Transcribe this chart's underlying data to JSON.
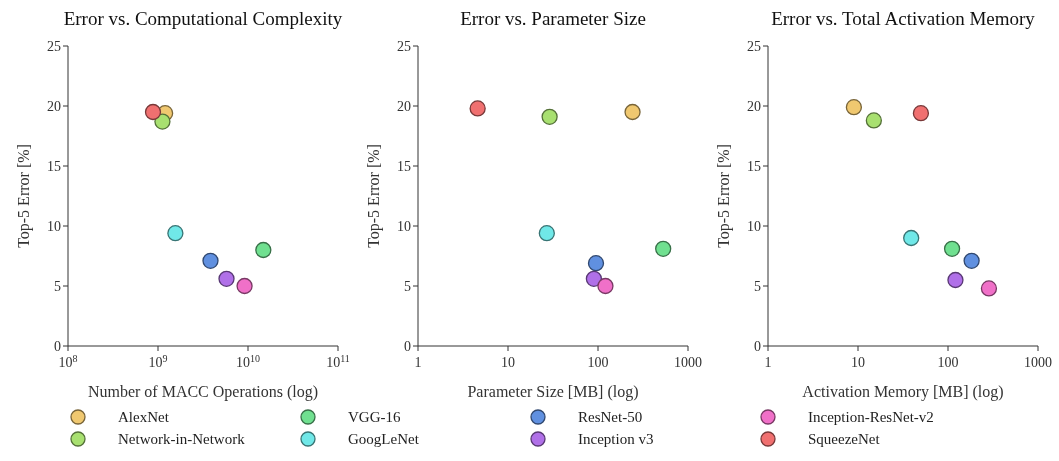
{
  "chart_data": [
    {
      "type": "scatter",
      "title": "Error vs. Computational Complexity",
      "xlabel": "Number of MACC Operations (log)",
      "ylabel": "Top-5 Error [%]",
      "log": "x",
      "xlim": [
        100000000,
        100000000000
      ],
      "xticks": [
        {
          "value": 100000000,
          "label": "10$^{8}$"
        },
        {
          "value": 1000000000,
          "label": "10$^{9}$"
        },
        {
          "value": 10000000000,
          "label": "10$^{10}$"
        },
        {
          "value": 100000000000,
          "label": "10$^{11}$"
        }
      ],
      "ylim": [
        0,
        25
      ],
      "yticks": [
        0,
        5,
        10,
        15,
        20,
        25
      ],
      "marker": "circle",
      "grid": false,
      "legend": "bottom",
      "series": [
        {
          "name": "AlexNet",
          "color": "#f0c870",
          "x": [
            1200000000
          ],
          "values": [
            19.4
          ]
        },
        {
          "name": "Network-in-Network",
          "color": "#a8e070",
          "x": [
            1120000000
          ],
          "values": [
            18.7
          ]
        },
        {
          "name": "VGG-16",
          "color": "#70e090",
          "x": [
            14800000000
          ],
          "values": [
            8.0
          ]
        },
        {
          "name": "GoogLeNet",
          "color": "#70e8e8",
          "x": [
            1560000000
          ],
          "values": [
            9.4
          ]
        },
        {
          "name": "ResNet-50",
          "color": "#6090e0",
          "x": [
            3830000000
          ],
          "values": [
            7.1
          ]
        },
        {
          "name": "Inception v3",
          "color": "#b070e8",
          "x": [
            5770000000
          ],
          "values": [
            5.6
          ]
        },
        {
          "name": "Inception-ResNet-v2",
          "color": "#f070c8",
          "x": [
            9160000000
          ],
          "values": [
            5.0
          ]
        },
        {
          "name": "SqueezeNet",
          "color": "#f07070",
          "x": [
            880000000
          ],
          "values": [
            19.5
          ]
        }
      ]
    },
    {
      "type": "scatter",
      "title": "Error vs. Parameter Size",
      "xlabel": "Parameter Size [MB] (log)",
      "ylabel": "Top-5 Error [%]",
      "log": "x",
      "xlim": [
        1,
        1000
      ],
      "xticks": [
        1,
        10,
        100,
        1000
      ],
      "ylim": [
        0,
        25
      ],
      "yticks": [
        0,
        5,
        10,
        15,
        20,
        25
      ],
      "marker": "circle",
      "grid": false,
      "legend": "bottom",
      "series": [
        {
          "name": "AlexNet",
          "color": "#f0c870",
          "x": [
            242
          ],
          "values": [
            19.5
          ]
        },
        {
          "name": "Network-in-Network",
          "color": "#a8e070",
          "x": [
            29
          ],
          "values": [
            19.1
          ]
        },
        {
          "name": "VGG-16",
          "color": "#70e090",
          "x": [
            530
          ],
          "values": [
            8.1
          ]
        },
        {
          "name": "GoogLeNet",
          "color": "#70e8e8",
          "x": [
            27
          ],
          "values": [
            9.4
          ]
        },
        {
          "name": "ResNet-50",
          "color": "#6090e0",
          "x": [
            95
          ],
          "values": [
            6.9
          ]
        },
        {
          "name": "Inception v3",
          "color": "#b070e8",
          "x": [
            90
          ],
          "values": [
            5.6
          ]
        },
        {
          "name": "Inception-ResNet-v2",
          "color": "#f070c8",
          "x": [
            121
          ],
          "values": [
            5.0
          ]
        },
        {
          "name": "SqueezeNet",
          "color": "#f07070",
          "x": [
            4.6
          ],
          "values": [
            19.8
          ]
        }
      ]
    },
    {
      "type": "scatter",
      "title": "Error vs. Total Activation Memory",
      "xlabel": "Activation Memory [MB] (log)",
      "ylabel": "Top-5 Error [%]",
      "log": "x",
      "xlim": [
        1,
        1000
      ],
      "xticks": [
        1,
        10,
        100,
        1000
      ],
      "ylim": [
        0,
        25
      ],
      "yticks": [
        0,
        5,
        10,
        15,
        20,
        25
      ],
      "marker": "circle",
      "grid": false,
      "legend": "bottom",
      "series": [
        {
          "name": "AlexNet",
          "color": "#f0c870",
          "x": [
            9.0
          ],
          "values": [
            19.9
          ]
        },
        {
          "name": "Network-in-Network",
          "color": "#a8e070",
          "x": [
            15
          ],
          "values": [
            18.8
          ]
        },
        {
          "name": "VGG-16",
          "color": "#70e090",
          "x": [
            111
          ],
          "values": [
            8.1
          ]
        },
        {
          "name": "GoogLeNet",
          "color": "#70e8e8",
          "x": [
            39
          ],
          "values": [
            9.0
          ]
        },
        {
          "name": "ResNet-50",
          "color": "#6090e0",
          "x": [
            183
          ],
          "values": [
            7.1
          ]
        },
        {
          "name": "Inception v3",
          "color": "#b070e8",
          "x": [
            121
          ],
          "values": [
            5.5
          ]
        },
        {
          "name": "Inception-ResNet-v2",
          "color": "#f070c8",
          "x": [
            285
          ],
          "values": [
            4.8
          ]
        },
        {
          "name": "SqueezeNet",
          "color": "#f07070",
          "x": [
            50
          ],
          "values": [
            19.4
          ]
        }
      ]
    }
  ]
}
